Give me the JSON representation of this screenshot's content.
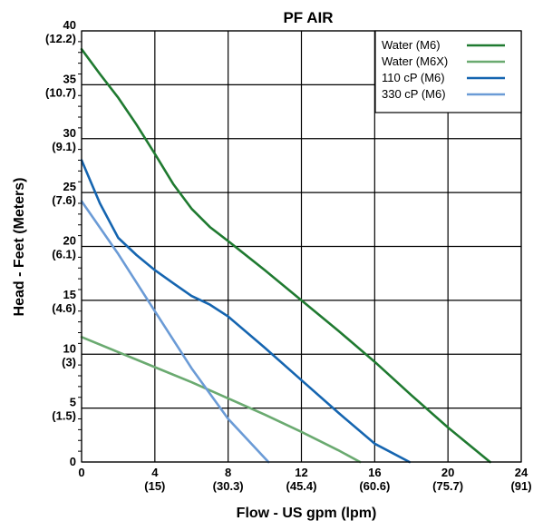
{
  "chart_data": {
    "type": "line",
    "title": "PF AIR",
    "xlabel": "Flow - US gpm (lpm)",
    "ylabel": "Head - Feet (Meters)",
    "xlim": [
      0,
      24
    ],
    "ylim": [
      0,
      40
    ],
    "grid": true,
    "legend_position": "top-right",
    "x_ticks": [
      {
        "value": 0,
        "label": "0",
        "sub": ""
      },
      {
        "value": 4,
        "label": "4",
        "sub": "(15)"
      },
      {
        "value": 8,
        "label": "8",
        "sub": "(30.3)"
      },
      {
        "value": 12,
        "label": "12",
        "sub": "(45.4)"
      },
      {
        "value": 16,
        "label": "16",
        "sub": "(60.6)"
      },
      {
        "value": 20,
        "label": "20",
        "sub": "(75.7)"
      },
      {
        "value": 24,
        "label": "24",
        "sub": "(91)"
      }
    ],
    "y_ticks": [
      {
        "value": 0,
        "label": "0",
        "sub": ""
      },
      {
        "value": 5,
        "label": "5",
        "sub": "(1.5)"
      },
      {
        "value": 10,
        "label": "10",
        "sub": "(3)"
      },
      {
        "value": 15,
        "label": "15",
        "sub": "(4.6)"
      },
      {
        "value": 20,
        "label": "20",
        "sub": "(6.1)"
      },
      {
        "value": 25,
        "label": "25",
        "sub": "(7.6)"
      },
      {
        "value": 30,
        "label": "30",
        "sub": "(9.1)"
      },
      {
        "value": 35,
        "label": "35",
        "sub": "(10.7)"
      },
      {
        "value": 40,
        "label": "40",
        "sub": "(12.2)"
      }
    ],
    "series": [
      {
        "name": "Water (M6)",
        "color": "#1f7a30",
        "x": [
          0,
          1,
          2,
          3,
          4,
          5,
          6,
          7,
          8,
          10,
          12,
          14,
          16,
          18,
          20,
          22.3
        ],
        "y": [
          38.3,
          36,
          33.8,
          31.3,
          28.6,
          25.8,
          23.5,
          21.8,
          20.5,
          17.8,
          15,
          12.2,
          9.3,
          6.2,
          3.2,
          0
        ]
      },
      {
        "name": "Water (M6X)",
        "color": "#6aaa70",
        "x": [
          0,
          2,
          4,
          6,
          8,
          10,
          12,
          14,
          15.2
        ],
        "y": [
          11.6,
          10.2,
          8.8,
          7.4,
          5.9,
          4.4,
          2.8,
          1.1,
          0
        ]
      },
      {
        "name": "110 cP (M6)",
        "color": "#1565b0",
        "x": [
          0,
          1,
          2,
          3,
          4,
          5,
          6,
          7,
          8,
          10,
          12,
          14,
          16,
          17.9
        ],
        "y": [
          28,
          24,
          20.8,
          19.2,
          17.8,
          16.6,
          15.4,
          14.6,
          13.5,
          10.6,
          7.6,
          4.6,
          1.7,
          0
        ]
      },
      {
        "name": "330 cP (M6)",
        "color": "#6b9bd6",
        "x": [
          0,
          2,
          4,
          6,
          8,
          10.2
        ],
        "y": [
          24.2,
          19.3,
          14,
          8.7,
          4,
          0
        ]
      }
    ]
  }
}
